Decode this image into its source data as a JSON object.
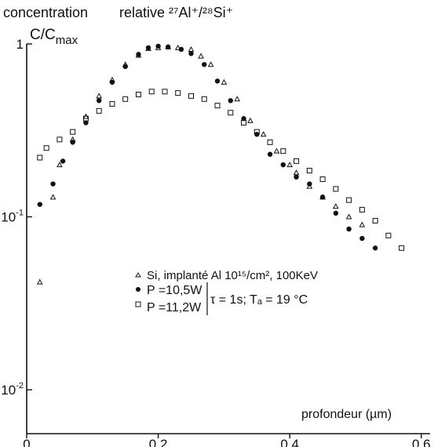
{
  "chart_data": {
    "type": "scatter",
    "title": "concentration",
    "subtitle": "relative ²⁷Al⁺/²⁸Si⁺",
    "ylabel": "C/C",
    "ylabel_sub": "max",
    "xlabel": "profondeur (µm)",
    "y_scale": "log",
    "xlim": [
      0,
      0.6
    ],
    "ylim": [
      0.01,
      1
    ],
    "x_ticks": [
      0,
      0.2,
      0.4,
      0.6
    ],
    "x_tick_labels": [
      "0",
      "0,2",
      "0,4",
      "0,6"
    ],
    "y_ticks": [
      {
        "value": 1,
        "base": "1",
        "exp": ""
      },
      {
        "value": 0.1,
        "base": "10",
        "exp": "-1"
      },
      {
        "value": 0.01,
        "base": "10",
        "exp": "-2"
      }
    ],
    "grid": false,
    "legend_position": "center",
    "legend": {
      "line1": "Si, implanté Al 10¹⁵/cm², 100KeV",
      "line2": "P =10,5W",
      "line3": "P =11,2W",
      "condition": "τ = 1s; Tₐ = 19 °C"
    },
    "series": [
      {
        "name": "Si, implanté Al 10¹⁵/cm², 100KeV",
        "marker": "triangle",
        "x": [
          0.02,
          0.04,
          0.05,
          0.07,
          0.09,
          0.11,
          0.13,
          0.15,
          0.17,
          0.185,
          0.2,
          0.215,
          0.23,
          0.25,
          0.265,
          0.28,
          0.3,
          0.32,
          0.34,
          0.36,
          0.38,
          0.4,
          0.41,
          0.43,
          0.45,
          0.47,
          0.49,
          0.51
        ],
        "y": [
          0.042,
          0.13,
          0.2,
          0.28,
          0.38,
          0.5,
          0.62,
          0.76,
          0.86,
          0.94,
          0.95,
          0.96,
          0.95,
          0.93,
          0.85,
          0.76,
          0.6,
          0.48,
          0.36,
          0.3,
          0.24,
          0.2,
          0.18,
          0.15,
          0.13,
          0.115,
          0.1,
          0.09
        ]
      },
      {
        "name": "P =10,5W",
        "marker": "filled-circle",
        "x": [
          0.02,
          0.04,
          0.055,
          0.07,
          0.09,
          0.11,
          0.13,
          0.15,
          0.17,
          0.185,
          0.2,
          0.215,
          0.235,
          0.25,
          0.27,
          0.29,
          0.31,
          0.33,
          0.35,
          0.37,
          0.39,
          0.41,
          0.43,
          0.45,
          0.47,
          0.49,
          0.51,
          0.53
        ],
        "y": [
          0.118,
          0.155,
          0.21,
          0.27,
          0.35,
          0.47,
          0.6,
          0.74,
          0.87,
          0.95,
          0.97,
          0.96,
          0.93,
          0.88,
          0.76,
          0.61,
          0.47,
          0.37,
          0.3,
          0.23,
          0.2,
          0.17,
          0.155,
          0.13,
          0.105,
          0.085,
          0.075,
          0.066
        ]
      },
      {
        "name": "P =11,2W",
        "marker": "open-square",
        "x": [
          0.02,
          0.03,
          0.05,
          0.07,
          0.09,
          0.11,
          0.13,
          0.15,
          0.17,
          0.19,
          0.21,
          0.23,
          0.25,
          0.27,
          0.29,
          0.31,
          0.33,
          0.35,
          0.37,
          0.39,
          0.41,
          0.43,
          0.45,
          0.47,
          0.49,
          0.51,
          0.53,
          0.55,
          0.57
        ],
        "y": [
          0.22,
          0.25,
          0.28,
          0.31,
          0.37,
          0.41,
          0.45,
          0.48,
          0.51,
          0.53,
          0.53,
          0.52,
          0.5,
          0.48,
          0.44,
          0.4,
          0.35,
          0.31,
          0.27,
          0.24,
          0.21,
          0.185,
          0.165,
          0.145,
          0.125,
          0.11,
          0.095,
          0.078,
          0.066
        ]
      }
    ]
  }
}
